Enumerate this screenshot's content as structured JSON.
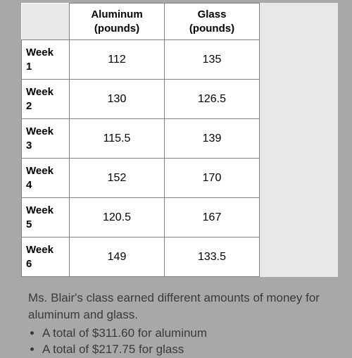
{
  "table": {
    "columns": [
      {
        "label_line1": "Aluminum",
        "label_line2": "(pounds)"
      },
      {
        "label_line1": "Glass",
        "label_line2": "(pounds)"
      }
    ],
    "rows": [
      {
        "label_line1": "Week",
        "label_line2": "1",
        "values": [
          "112",
          "135"
        ]
      },
      {
        "label_line1": "Week",
        "label_line2": "2",
        "values": [
          "130",
          "126.5"
        ]
      },
      {
        "label_line1": "Week",
        "label_line2": "3",
        "values": [
          "115.5",
          "139"
        ]
      },
      {
        "label_line1": "Week",
        "label_line2": "4",
        "values": [
          "152",
          "170"
        ]
      },
      {
        "label_line1": "Week",
        "label_line2": "5",
        "values": [
          "120.5",
          "167"
        ]
      },
      {
        "label_line1": "Week",
        "label_line2": "6",
        "values": [
          "149",
          "133.5"
        ]
      }
    ],
    "border_color": "#808080",
    "bg_color": "#ffffff",
    "outer_bg": "#e8e8e8",
    "font_family": "Arial, sans-serif",
    "header_fontsize": 15,
    "cell_fontsize": 16,
    "row_header_width": 68,
    "data_col_width": 135
  },
  "description": {
    "intro": "Ms. Blair's class earned different amounts of money for aluminum and glass.",
    "bullets": [
      "A total of $311.60 for aluminum",
      "A total of $217.75 for glass"
    ],
    "text_color": "#3a3a3a",
    "fontsize": 17
  },
  "page_bg": "#a8a8a8"
}
